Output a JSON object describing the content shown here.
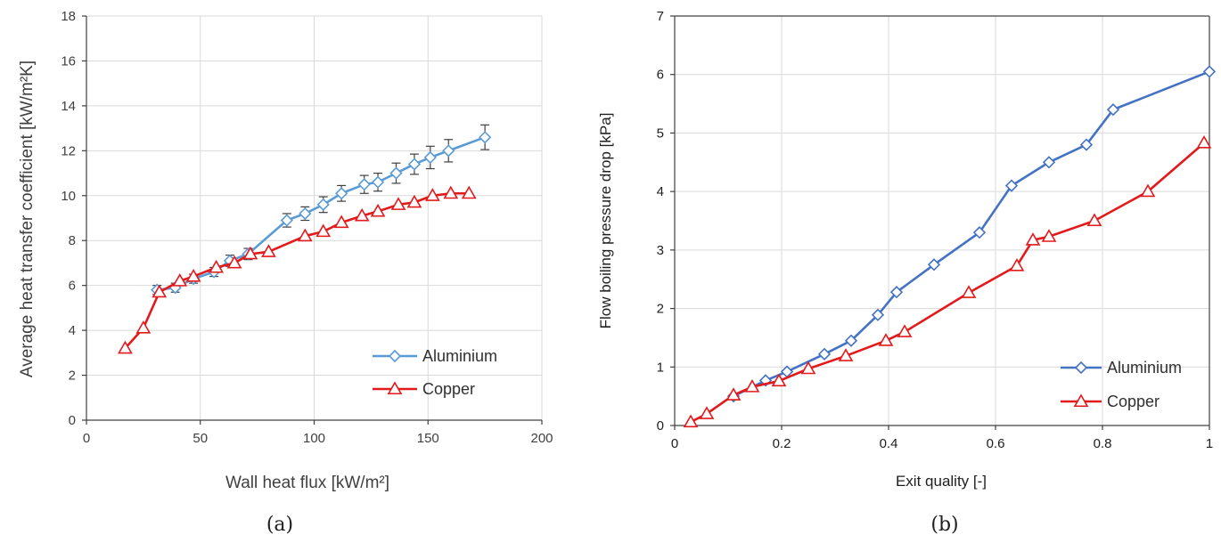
{
  "figure": {
    "caption_a": "(a)",
    "caption_b": "(b)"
  },
  "chart_data": [
    {
      "type": "line",
      "panel": "a",
      "title": "",
      "xlabel": "Wall heat flux [kW/m²]",
      "ylabel": "Average heat transfer coefficient  [kW/m²K]",
      "xlim": [
        0,
        200
      ],
      "ylim": [
        0,
        18
      ],
      "xticks": [
        0,
        50,
        100,
        150,
        200
      ],
      "yticks": [
        0,
        2,
        4,
        6,
        8,
        10,
        12,
        14,
        16,
        18
      ],
      "grid": true,
      "legend_position": "bottom-right",
      "series": [
        {
          "name": "Aluminium",
          "color": "#5b9bd5",
          "marker": "diamond",
          "error_bars": true,
          "x": [
            31,
            39,
            47,
            56,
            63,
            71,
            88,
            96,
            104,
            112,
            122,
            128,
            136,
            144,
            151,
            159,
            175
          ],
          "y": [
            5.8,
            5.9,
            6.3,
            6.6,
            7.1,
            7.4,
            8.9,
            9.2,
            9.6,
            10.1,
            10.5,
            10.6,
            11.0,
            11.4,
            11.7,
            12.0,
            12.6
          ],
          "err": [
            0.2,
            0.2,
            0.2,
            0.2,
            0.25,
            0.25,
            0.3,
            0.3,
            0.35,
            0.35,
            0.4,
            0.4,
            0.45,
            0.45,
            0.5,
            0.5,
            0.55
          ]
        },
        {
          "name": "Copper",
          "color": "#e31a1c",
          "marker": "triangle",
          "x": [
            17,
            25,
            32,
            41,
            47,
            57,
            65,
            72,
            80,
            96,
            104,
            112,
            121,
            128,
            137,
            144,
            152,
            160,
            168
          ],
          "y": [
            3.2,
            4.1,
            5.7,
            6.2,
            6.4,
            6.8,
            7.0,
            7.4,
            7.5,
            8.2,
            8.4,
            8.8,
            9.1,
            9.3,
            9.6,
            9.7,
            10.0,
            10.1,
            10.1
          ]
        }
      ]
    },
    {
      "type": "line",
      "panel": "b",
      "title": "",
      "xlabel": "Exit quality [-]",
      "ylabel": "Flow boiling pressure drop [kPa]",
      "xlim": [
        0,
        1
      ],
      "ylim": [
        0,
        7
      ],
      "xticks": [
        0,
        0.2,
        0.4,
        0.6,
        0.8,
        1
      ],
      "xtick_labels": [
        "0",
        "0.2",
        "0.4",
        "0.6",
        "0.8",
        "1"
      ],
      "yticks": [
        0,
        1,
        2,
        3,
        4,
        5,
        6,
        7
      ],
      "grid": true,
      "legend_position": "bottom-right",
      "series": [
        {
          "name": "Aluminium",
          "color": "#4472c4",
          "marker": "diamond",
          "x": [
            0.11,
            0.17,
            0.21,
            0.28,
            0.33,
            0.38,
            0.415,
            0.485,
            0.57,
            0.63,
            0.7,
            0.77,
            0.82,
            1.0
          ],
          "y": [
            0.5,
            0.77,
            0.92,
            1.22,
            1.45,
            1.89,
            2.28,
            2.75,
            3.3,
            4.1,
            4.5,
            4.8,
            5.4,
            6.05
          ]
        },
        {
          "name": "Copper",
          "color": "#e31a1c",
          "marker": "triangle",
          "x": [
            0.03,
            0.06,
            0.11,
            0.145,
            0.195,
            0.25,
            0.32,
            0.395,
            0.43,
            0.55,
            0.64,
            0.67,
            0.7,
            0.785,
            0.885,
            0.99
          ],
          "y": [
            0.06,
            0.2,
            0.52,
            0.66,
            0.76,
            0.97,
            1.19,
            1.45,
            1.6,
            2.27,
            2.73,
            3.17,
            3.23,
            3.5,
            4.0,
            4.83
          ]
        }
      ]
    }
  ]
}
